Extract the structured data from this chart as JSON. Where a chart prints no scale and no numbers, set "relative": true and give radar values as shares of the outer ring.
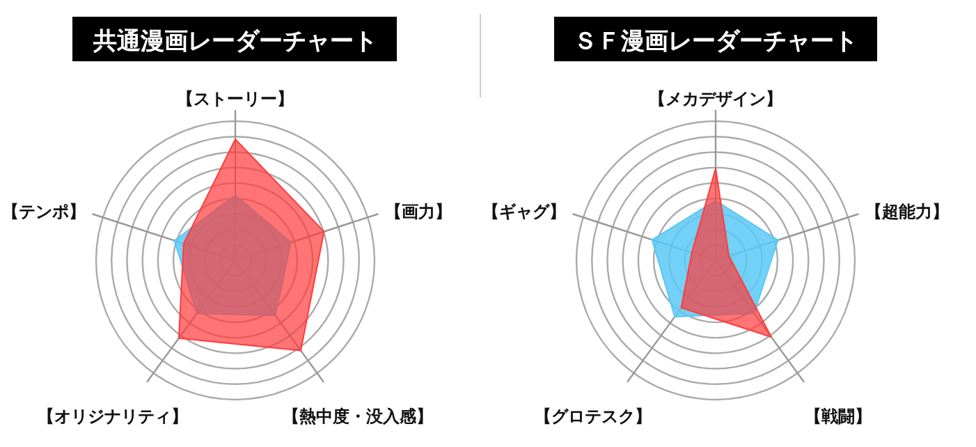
{
  "chart_data": [
    {
      "type": "radar",
      "title": "共通漫画レーダーチャート",
      "categories": [
        "【ストーリー】",
        "【画力】",
        "【熱中度・没入感】",
        "【オリジナリティ】",
        "【テンポ】"
      ],
      "relative": true,
      "grid": true,
      "series": [
        {
          "color": "#5bc8f5",
          "values": [
            0.47,
            0.42,
            0.49,
            0.47,
            0.46
          ]
        },
        {
          "color": "#ff3b3b",
          "values": [
            0.87,
            0.67,
            0.8,
            0.69,
            0.39
          ]
        }
      ]
    },
    {
      "type": "radar",
      "title": "ＳＦ漫画レーダーチャート",
      "categories": [
        "【メカデザイン】",
        "【超能力】",
        "【戦闘】",
        "【グロテスク】",
        "【ギャグ】"
      ],
      "relative": true,
      "grid": true,
      "series": [
        {
          "color": "#5bc8f5",
          "values": [
            0.43,
            0.47,
            0.47,
            0.5,
            0.48
          ]
        },
        {
          "color": "#ff3b3b",
          "values": [
            0.66,
            0.1,
            0.68,
            0.42,
            0.18
          ]
        }
      ]
    }
  ]
}
